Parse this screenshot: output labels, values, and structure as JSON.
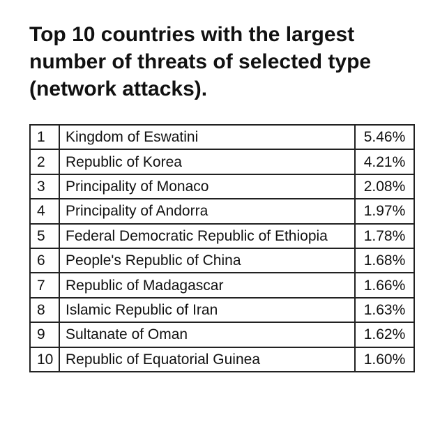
{
  "title": "Top 10 countries with the largest number of threats of selected type (network attacks).",
  "chart_data": {
    "type": "table",
    "title": "Top 10 countries with the largest number of threats of selected type (network attacks).",
    "rows": [
      {
        "rank": "1",
        "country": "Kingdom of Eswatini",
        "value": "5.46%"
      },
      {
        "rank": "2",
        "country": "Republic of Korea",
        "value": "4.21%"
      },
      {
        "rank": "3",
        "country": "Principality of Monaco",
        "value": "2.08%"
      },
      {
        "rank": "4",
        "country": "Principality of Andorra",
        "value": "1.97%"
      },
      {
        "rank": "5",
        "country": "Federal Democratic Republic of Ethiopia",
        "value": "1.78%"
      },
      {
        "rank": "6",
        "country": "People's Republic of China",
        "value": "1.68%"
      },
      {
        "rank": "7",
        "country": "Republic of Madagascar",
        "value": "1.66%"
      },
      {
        "rank": "8",
        "country": "Islamic Republic of Iran",
        "value": "1.63%"
      },
      {
        "rank": "9",
        "country": "Sultanate of Oman",
        "value": "1.62%"
      },
      {
        "rank": "10",
        "country": "Republic of Equatorial Guinea",
        "value": "1.60%"
      }
    ]
  }
}
